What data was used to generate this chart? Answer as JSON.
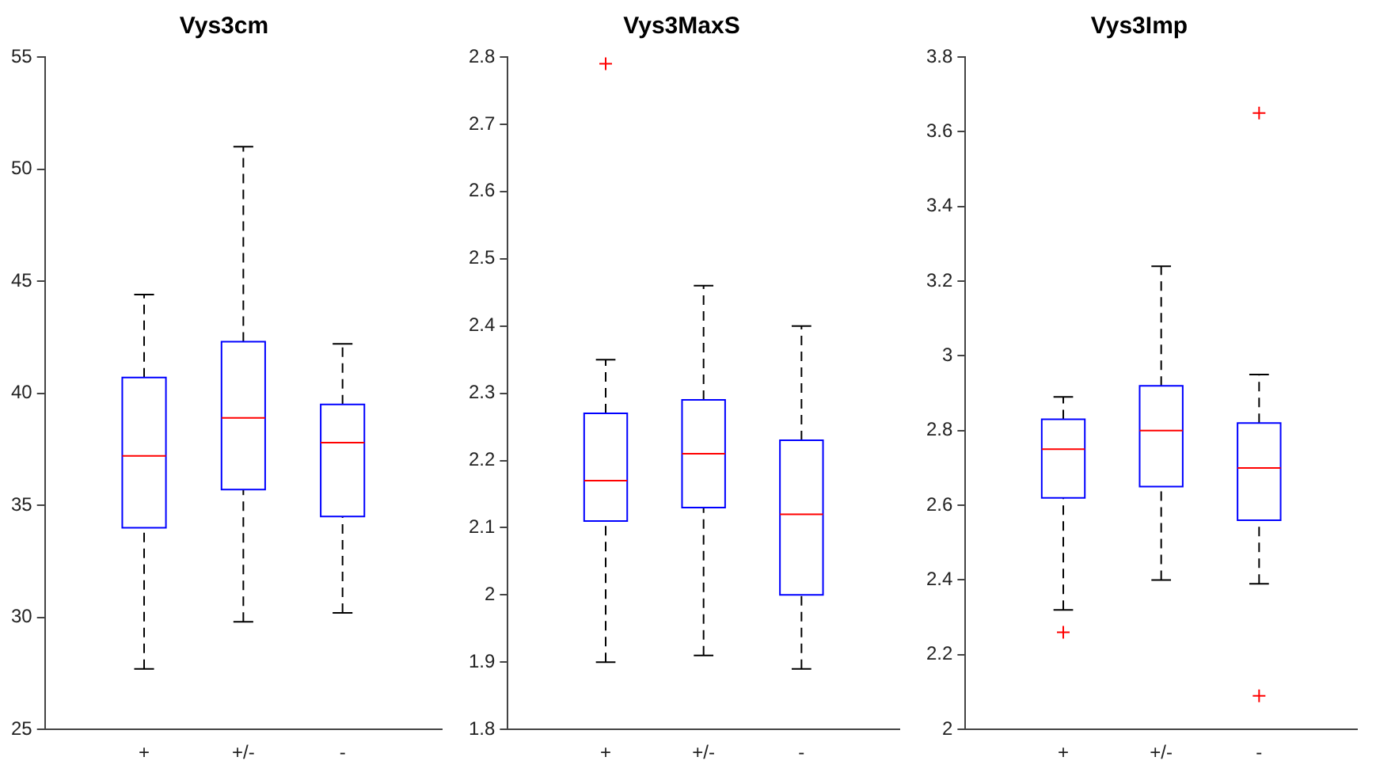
{
  "chart_data": [
    {
      "type": "box",
      "title": "Vys3cm",
      "categories": [
        "+",
        "+/-",
        "-"
      ],
      "ylim": [
        25,
        55
      ],
      "yticks": [
        25,
        30,
        35,
        40,
        45,
        50,
        55
      ],
      "grid": false,
      "legend": false,
      "boxes": [
        {
          "low": 27.7,
          "q1": 34.0,
          "median": 37.2,
          "q3": 40.7,
          "high": 44.4
        },
        {
          "low": 29.8,
          "q1": 35.7,
          "median": 38.9,
          "q3": 42.3,
          "high": 51.0
        },
        {
          "low": 30.2,
          "q1": 34.5,
          "median": 37.8,
          "q3": 39.5,
          "high": 42.2
        }
      ]
    },
    {
      "type": "box",
      "title": "Vys3MaxS",
      "categories": [
        "+",
        "+/-",
        "-"
      ],
      "ylim": [
        1.8,
        2.8
      ],
      "yticks": [
        1.8,
        1.9,
        2,
        2.1,
        2.2,
        2.3,
        2.4,
        2.5,
        2.6,
        2.7,
        2.8
      ],
      "grid": false,
      "legend": false,
      "boxes": [
        {
          "low": 1.9,
          "q1": 2.11,
          "median": 2.17,
          "q3": 2.27,
          "high": 2.35,
          "outliers": [
            2.79
          ]
        },
        {
          "low": 1.91,
          "q1": 2.13,
          "median": 2.21,
          "q3": 2.29,
          "high": 2.46
        },
        {
          "low": 1.89,
          "q1": 2.0,
          "median": 2.12,
          "q3": 2.23,
          "high": 2.4
        }
      ]
    },
    {
      "type": "box",
      "title": "Vys3Imp",
      "categories": [
        "+",
        "+/-",
        "-"
      ],
      "ylim": [
        2,
        3.8
      ],
      "yticks": [
        2,
        2.2,
        2.4,
        2.6,
        2.8,
        3,
        3.2,
        3.4,
        3.6,
        3.8
      ],
      "grid": false,
      "legend": false,
      "boxes": [
        {
          "low": 2.32,
          "q1": 2.62,
          "median": 2.75,
          "q3": 2.83,
          "high": 2.89,
          "outliers": [
            2.26
          ]
        },
        {
          "low": 2.4,
          "q1": 2.65,
          "median": 2.8,
          "q3": 2.92,
          "high": 3.24
        },
        {
          "low": 2.39,
          "q1": 2.56,
          "median": 2.7,
          "q3": 2.82,
          "high": 2.95,
          "outliers": [
            3.65,
            2.09
          ]
        }
      ]
    }
  ]
}
